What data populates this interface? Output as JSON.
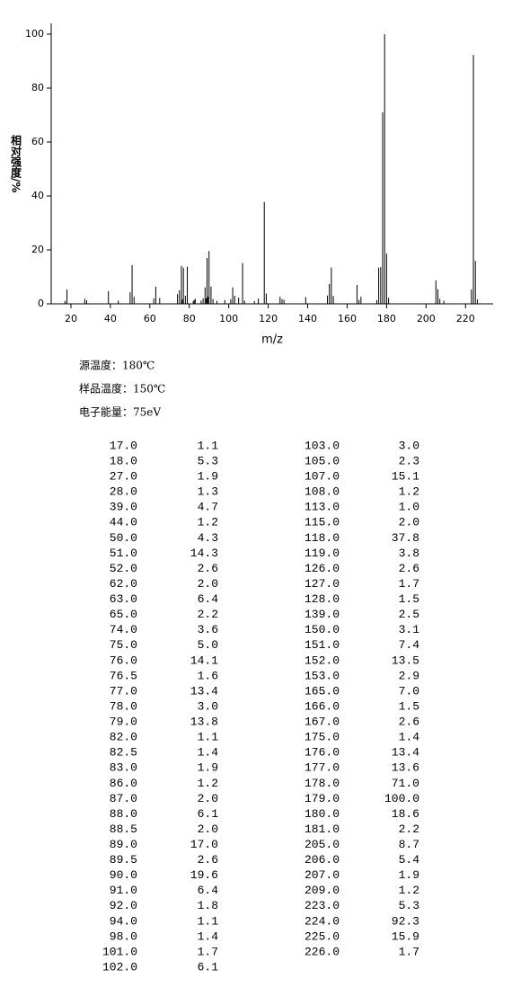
{
  "chart_data": {
    "type": "bar",
    "x_label": "m/z",
    "y_label": "相对强度/%",
    "x": [
      17,
      18,
      27,
      28,
      39,
      44,
      50,
      51,
      52,
      62,
      63,
      65,
      74,
      75,
      76,
      76.5,
      77,
      78,
      79,
      82,
      82.5,
      83,
      86,
      87,
      88,
      88.5,
      89,
      89.5,
      90,
      91,
      92,
      94,
      98,
      101,
      102,
      103,
      105,
      107,
      108,
      113,
      115,
      118,
      119,
      126,
      127,
      128,
      139,
      150,
      151,
      152,
      153,
      165,
      166,
      167,
      175,
      176,
      177,
      178,
      179,
      180,
      181,
      205,
      206,
      207,
      209,
      223,
      224,
      225,
      226
    ],
    "values": [
      1.1,
      5.3,
      1.9,
      1.3,
      4.7,
      1.2,
      4.3,
      14.3,
      2.6,
      2.0,
      6.4,
      2.2,
      3.6,
      5.0,
      14.1,
      1.6,
      13.4,
      3.0,
      13.8,
      1.1,
      1.4,
      1.9,
      1.2,
      2.0,
      6.1,
      2.0,
      17.0,
      2.6,
      19.6,
      6.4,
      1.8,
      1.1,
      1.4,
      1.7,
      6.1,
      3.0,
      2.3,
      15.1,
      1.2,
      1.0,
      2.0,
      37.8,
      3.8,
      2.6,
      1.7,
      1.5,
      2.5,
      3.1,
      7.4,
      13.5,
      2.9,
      7.0,
      1.5,
      2.6,
      1.4,
      13.4,
      13.6,
      71.0,
      100.0,
      18.6,
      2.2,
      8.7,
      5.4,
      1.9,
      1.2,
      5.3,
      92.3,
      15.9,
      1.7
    ],
    "color": "#000000",
    "xlim": [
      10,
      234
    ],
    "xticks": [
      20,
      40,
      60,
      80,
      100,
      120,
      140,
      160,
      180,
      200,
      220
    ],
    "ylim": [
      0,
      104
    ],
    "yticks": [
      0,
      20,
      40,
      60,
      80,
      100
    ]
  },
  "info": [
    "源温度：180℃",
    "样品温度：150℃",
    "电子能量：75eV"
  ],
  "table": {
    "rows": [
      [
        "17.0",
        "1.1",
        "103.0",
        "3.0"
      ],
      [
        "18.0",
        "5.3",
        "105.0",
        "2.3"
      ],
      [
        "27.0",
        "1.9",
        "107.0",
        "15.1"
      ],
      [
        "28.0",
        "1.3",
        "108.0",
        "1.2"
      ],
      [
        "39.0",
        "4.7",
        "113.0",
        "1.0"
      ],
      [
        "44.0",
        "1.2",
        "115.0",
        "2.0"
      ],
      [
        "50.0",
        "4.3",
        "118.0",
        "37.8"
      ],
      [
        "51.0",
        "14.3",
        "119.0",
        "3.8"
      ],
      [
        "52.0",
        "2.6",
        "126.0",
        "2.6"
      ],
      [
        "62.0",
        "2.0",
        "127.0",
        "1.7"
      ],
      [
        "63.0",
        "6.4",
        "128.0",
        "1.5"
      ],
      [
        "65.0",
        "2.2",
        "139.0",
        "2.5"
      ],
      [
        "74.0",
        "3.6",
        "150.0",
        "3.1"
      ],
      [
        "75.0",
        "5.0",
        "151.0",
        "7.4"
      ],
      [
        "76.0",
        "14.1",
        "152.0",
        "13.5"
      ],
      [
        "76.5",
        "1.6",
        "153.0",
        "2.9"
      ],
      [
        "77.0",
        "13.4",
        "165.0",
        "7.0"
      ],
      [
        "78.0",
        "3.0",
        "166.0",
        "1.5"
      ],
      [
        "79.0",
        "13.8",
        "167.0",
        "2.6"
      ],
      [
        "82.0",
        "1.1",
        "175.0",
        "1.4"
      ],
      [
        "82.5",
        "1.4",
        "176.0",
        "13.4"
      ],
      [
        "83.0",
        "1.9",
        "177.0",
        "13.6"
      ],
      [
        "86.0",
        "1.2",
        "178.0",
        "71.0"
      ],
      [
        "87.0",
        "2.0",
        "179.0",
        "100.0"
      ],
      [
        "88.0",
        "6.1",
        "180.0",
        "18.6"
      ],
      [
        "88.5",
        "2.0",
        "181.0",
        "2.2"
      ],
      [
        "89.0",
        "17.0",
        "205.0",
        "8.7"
      ],
      [
        "89.5",
        "2.6",
        "206.0",
        "5.4"
      ],
      [
        "90.0",
        "19.6",
        "207.0",
        "1.9"
      ],
      [
        "91.0",
        "6.4",
        "209.0",
        "1.2"
      ],
      [
        "92.0",
        "1.8",
        "223.0",
        "5.3"
      ],
      [
        "94.0",
        "1.1",
        "224.0",
        "92.3"
      ],
      [
        "98.0",
        "1.4",
        "225.0",
        "15.9"
      ],
      [
        "101.0",
        "1.7",
        "226.0",
        "1.7"
      ],
      [
        "102.0",
        "6.1"
      ]
    ]
  }
}
